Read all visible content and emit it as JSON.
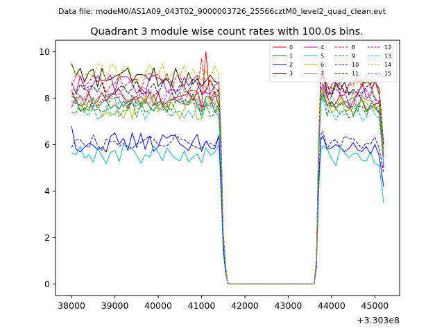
{
  "chart_data": {
    "type": "line",
    "suptitle": "Data file: modeM0/AS1A09_043T02_9000003726_25566cztM0_level2_quad_clean.evt",
    "title": "Quadrant 3 module wise count rates with 100.0s bins.",
    "xlabel": "",
    "ylabel": "",
    "x_offset_label": "+3.303e8",
    "xlim": [
      37630,
      45570
    ],
    "ylim": [
      -0.5,
      10.5
    ],
    "xticks": [
      38000,
      39000,
      40000,
      41000,
      42000,
      43000,
      44000,
      45000
    ],
    "yticks": [
      0,
      2,
      4,
      6,
      8,
      10
    ],
    "grid": false,
    "legend_position": "top-right",
    "legend_columns": 4,
    "segments": [
      {
        "start": 38000,
        "end": 41400,
        "step": 100
      },
      {
        "start": 41450,
        "end": 41600,
        "step": 50
      },
      {
        "start": 41700,
        "end": 43600,
        "step": 100
      },
      {
        "start": 43650,
        "end": 43800,
        "step": 50
      },
      {
        "start": 43900,
        "end": 45200,
        "step": 100
      }
    ],
    "series": [
      {
        "name": "0",
        "color": "#ff0000",
        "dashed": false,
        "mean1": 8.0,
        "amp1": 0.3,
        "mean2": 7.9,
        "amp2": 0.3,
        "end": 5.8,
        "peak": 10.0,
        "peak_x": 41100
      },
      {
        "name": "1",
        "color": "#008000",
        "dashed": false,
        "mean1": 7.8,
        "amp1": 0.3,
        "mean2": 7.6,
        "amp2": 0.3,
        "end": 5.5
      },
      {
        "name": "2",
        "color": "#0000ff",
        "dashed": false,
        "mean1": 6.1,
        "amp1": 0.3,
        "mean2": 5.9,
        "amp2": 0.3,
        "end": 4.2,
        "start_val": 6.8
      },
      {
        "name": "3",
        "color": "#000000",
        "dashed": false,
        "mean1": 8.9,
        "amp1": 0.3,
        "mean2": 8.5,
        "amp2": 0.3,
        "end": 6.0,
        "start_val": 9.5
      },
      {
        "name": "4",
        "color": "#bf00bf",
        "dashed": false,
        "mean1": 8.6,
        "amp1": 0.3,
        "mean2": 8.4,
        "amp2": 0.3,
        "end": 5.0
      },
      {
        "name": "5",
        "color": "#00bfbf",
        "dashed": false,
        "mean1": 5.6,
        "amp1": 0.3,
        "mean2": 5.5,
        "amp2": 0.3,
        "end": 3.5
      },
      {
        "name": "6",
        "color": "#bfbf00",
        "dashed": false,
        "mean1": 7.6,
        "amp1": 0.4,
        "mean2": 7.8,
        "amp2": 0.3,
        "end": 5.9
      },
      {
        "name": "7",
        "color": "#808080",
        "dashed": false,
        "mean1": 7.9,
        "amp1": 0.3,
        "mean2": 7.7,
        "amp2": 0.3,
        "end": 5.5
      },
      {
        "name": "8",
        "color": "#ff0000",
        "dashed": true,
        "mean1": 8.7,
        "amp1": 0.35,
        "mean2": 8.6,
        "amp2": 0.3,
        "end": 6.0,
        "peak": 9.7,
        "peak_x": 41000
      },
      {
        "name": "9",
        "color": "#008000",
        "dashed": true,
        "mean1": 7.6,
        "amp1": 0.3,
        "mean2": 7.5,
        "amp2": 0.3,
        "end": 5.5
      },
      {
        "name": "10",
        "color": "#0000ff",
        "dashed": true,
        "mean1": 6.1,
        "amp1": 0.25,
        "mean2": 6.1,
        "amp2": 0.2,
        "end": 4.8
      },
      {
        "name": "11",
        "color": "#000000",
        "dashed": true,
        "mean1": 8.5,
        "amp1": 0.3,
        "mean2": 8.3,
        "amp2": 0.3,
        "end": 6.0
      },
      {
        "name": "12",
        "color": "#bf00bf",
        "dashed": true,
        "mean1": 8.0,
        "amp1": 0.3,
        "mean2": 8.0,
        "amp2": 0.3,
        "end": 5.5
      },
      {
        "name": "13",
        "color": "#00bfbf",
        "dashed": true,
        "mean1": 7.5,
        "amp1": 0.3,
        "mean2": 7.4,
        "amp2": 0.3,
        "end": 5.2
      },
      {
        "name": "14",
        "color": "#bfbf00",
        "dashed": true,
        "mean1": 9.1,
        "amp1": 0.3,
        "mean2": 8.7,
        "amp2": 0.3,
        "end": 5.8
      },
      {
        "name": "15",
        "color": "#808080",
        "dashed": true,
        "mean1": 8.1,
        "amp1": 0.3,
        "mean2": 7.9,
        "amp2": 0.3,
        "end": 5.4
      }
    ]
  }
}
